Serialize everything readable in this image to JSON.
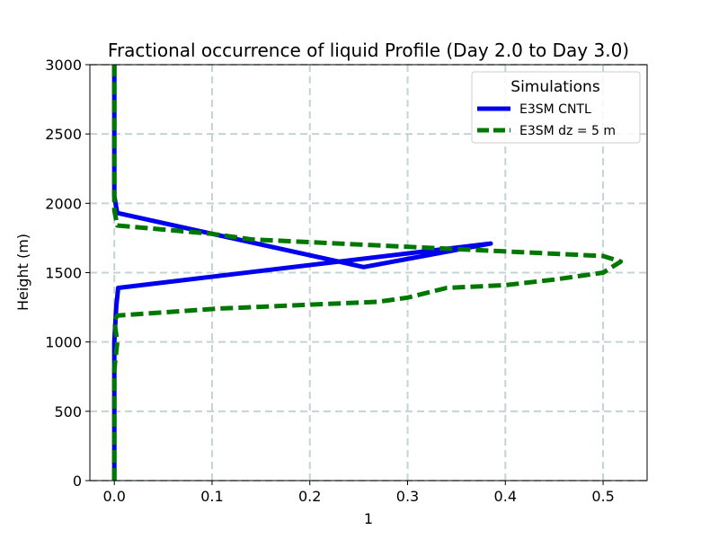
{
  "chart_data": {
    "type": "line",
    "title": "Fractional occurrence of liquid Profile (Day 2.0 to Day 3.0)",
    "xlabel": "1",
    "ylabel": "Height (m)",
    "xlim": [
      -0.025,
      0.545
    ],
    "ylim": [
      0,
      3000
    ],
    "xticks": [
      0.0,
      0.1,
      0.2,
      0.3,
      0.4,
      0.5
    ],
    "xtick_labels": [
      "0.0",
      "0.1",
      "0.2",
      "0.3",
      "0.4",
      "0.5"
    ],
    "yticks": [
      0,
      500,
      1000,
      1500,
      2000,
      2500,
      3000
    ],
    "ytick_labels": [
      "0",
      "500",
      "1000",
      "1500",
      "2000",
      "2500",
      "3000"
    ],
    "grid": true,
    "legend": {
      "title": "Simulations",
      "placement": "top-right"
    },
    "series": [
      {
        "name": "E3SM CNTL",
        "color": "#0000ee",
        "style": "solid",
        "x": [
          0.0,
          0.0,
          0.002,
          0.004,
          0.385,
          0.255,
          0.003,
          0.0,
          0.0,
          0.0,
          0.0
        ],
        "y": [
          0,
          1000,
          1260,
          1390,
          1710,
          1540,
          1930,
          2050,
          2200,
          2600,
          3000
        ]
      },
      {
        "name": "E3SM dz = 5 m",
        "color": "#007700",
        "style": "dashed",
        "x": [
          0.0,
          0.0,
          0.003,
          0.0,
          0.003,
          0.105,
          0.27,
          0.3,
          0.34,
          0.4,
          0.45,
          0.5,
          0.518,
          0.5,
          0.14,
          0.1,
          0.003,
          0.0,
          0.0,
          0.0
        ],
        "y": [
          0,
          800,
          1000,
          1150,
          1190,
          1240,
          1290,
          1320,
          1390,
          1410,
          1450,
          1500,
          1580,
          1620,
          1740,
          1780,
          1840,
          1950,
          2200,
          3000
        ]
      }
    ]
  }
}
